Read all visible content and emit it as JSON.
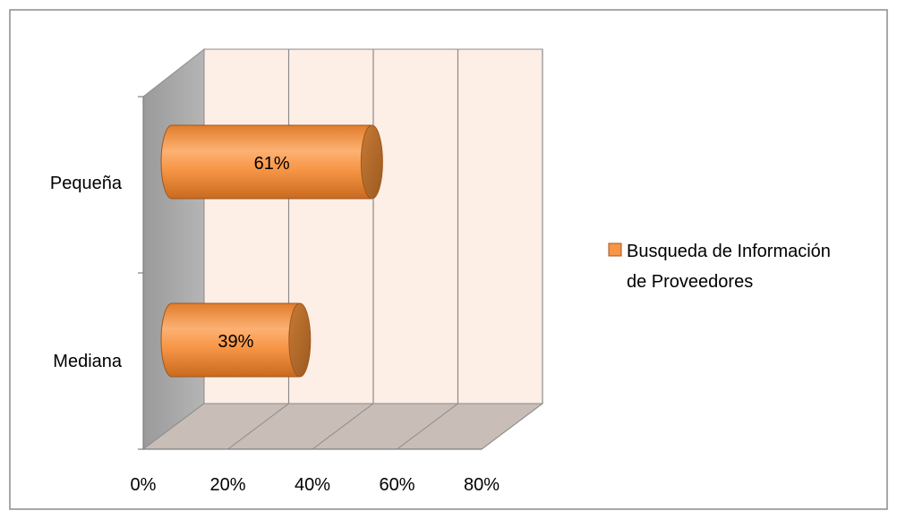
{
  "chart_data": {
    "type": "bar",
    "orientation": "horizontal",
    "style": "3d-cylinder",
    "categories": [
      "Pequeña",
      "Mediana"
    ],
    "series": [
      {
        "name": "Busqueda de Información de Proveedores",
        "values": [
          61,
          39
        ],
        "labels": [
          "61%",
          "39%"
        ],
        "color": "#f79646"
      }
    ],
    "xlim": [
      0,
      80
    ],
    "xticks": [
      0,
      20,
      40,
      60,
      80
    ],
    "xtick_labels": [
      "0%",
      "20%",
      "40%",
      "60%",
      "80%"
    ],
    "title": "",
    "xlabel": "",
    "ylabel": "",
    "grid": true,
    "legend": {
      "position": "right",
      "lines": [
        "Busqueda de Información",
        "de Proveedores"
      ]
    },
    "colors": {
      "back_wall": "#fdeee6",
      "side_wall": "#a6a6a6",
      "floor": "#c9bdb7",
      "grid": "#8c8c8c",
      "bar_fill": "#f79646",
      "bar_cap": "#b06a2c",
      "bar_edge": "#a0561c"
    }
  }
}
